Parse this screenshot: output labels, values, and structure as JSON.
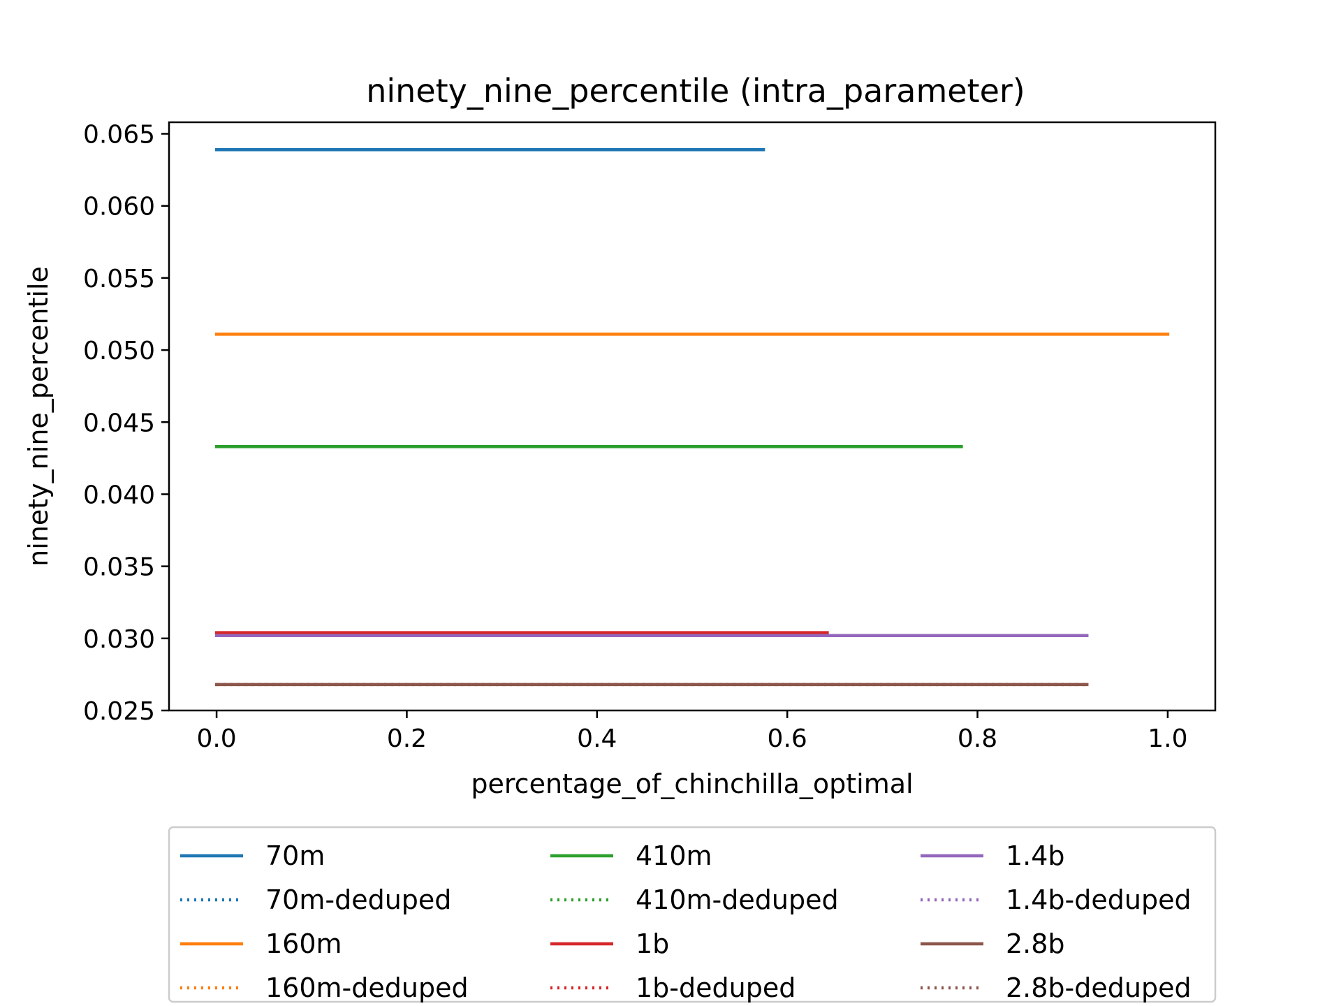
{
  "chart_data": {
    "type": "line",
    "title": "ninety_nine_percentile (intra_parameter)",
    "xlabel": "percentage_of_chinchilla_optimal",
    "ylabel": "ninety_nine_percentile",
    "xlim": [
      -0.05,
      1.05
    ],
    "ylim": [
      0.025,
      0.0658
    ],
    "xticks": [
      0.0,
      0.2,
      0.4,
      0.6,
      0.8,
      1.0
    ],
    "xtick_labels": [
      "0.0",
      "0.2",
      "0.4",
      "0.6",
      "0.8",
      "1.0"
    ],
    "yticks": [
      0.025,
      0.03,
      0.035,
      0.04,
      0.045,
      0.05,
      0.055,
      0.06,
      0.065
    ],
    "ytick_labels": [
      "0.025",
      "0.030",
      "0.035",
      "0.040",
      "0.045",
      "0.050",
      "0.055",
      "0.060",
      "0.065"
    ],
    "grid": false,
    "legend_placement": "below plot, 3 columns",
    "series": [
      {
        "name": "70m",
        "color": "#1f77b4",
        "style": "solid",
        "x": [
          0.0,
          0.575
        ],
        "y": [
          0.0639,
          0.0639
        ]
      },
      {
        "name": "70m-deduped",
        "color": "#1f77b4",
        "style": "dotted",
        "x": [],
        "y": []
      },
      {
        "name": "160m",
        "color": "#ff7f0e",
        "style": "solid",
        "x": [
          0.0,
          1.0
        ],
        "y": [
          0.0511,
          0.0511
        ]
      },
      {
        "name": "160m-deduped",
        "color": "#ff7f0e",
        "style": "dotted",
        "x": [],
        "y": []
      },
      {
        "name": "410m",
        "color": "#2ca02c",
        "style": "solid",
        "x": [
          0.0,
          0.783
        ],
        "y": [
          0.0433,
          0.0433
        ]
      },
      {
        "name": "410m-deduped",
        "color": "#2ca02c",
        "style": "dotted",
        "x": [],
        "y": []
      },
      {
        "name": "1b",
        "color": "#d62728",
        "style": "solid",
        "x": [
          0.0,
          0.642
        ],
        "y": [
          0.0304,
          0.0304
        ]
      },
      {
        "name": "1b-deduped",
        "color": "#d62728",
        "style": "dotted",
        "x": [],
        "y": []
      },
      {
        "name": "1.4b",
        "color": "#9467bd",
        "style": "solid",
        "x": [
          0.0,
          0.915
        ],
        "y": [
          0.0302,
          0.0302
        ]
      },
      {
        "name": "1.4b-deduped",
        "color": "#9467bd",
        "style": "dotted",
        "x": [],
        "y": []
      },
      {
        "name": "2.8b",
        "color": "#8c564b",
        "style": "solid",
        "x": [
          0.0,
          0.915
        ],
        "y": [
          0.0268,
          0.0268
        ]
      },
      {
        "name": "2.8b-deduped",
        "color": "#8c564b",
        "style": "dotted",
        "x": [
          0.0,
          0.915
        ],
        "y": [
          0.0268,
          0.0268
        ]
      }
    ]
  }
}
